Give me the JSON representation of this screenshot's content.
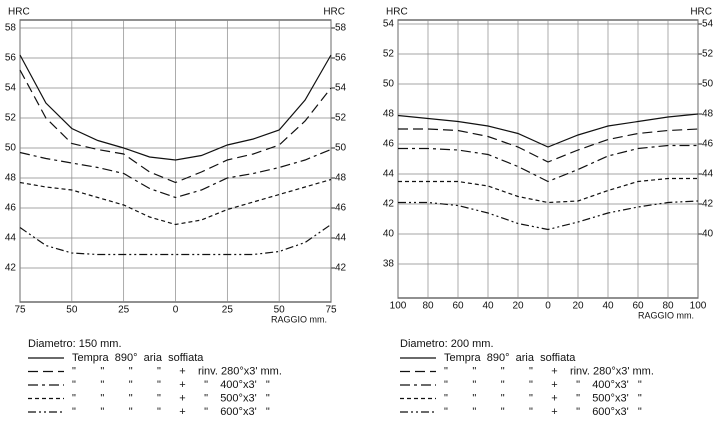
{
  "chart_data": [
    {
      "type": "line",
      "y_label": "HRC",
      "y2_label": "HRC",
      "x_label": "RAGGIO mm.",
      "legend_title": "Diametro: 150 mm.",
      "xlim": [
        -75,
        75
      ],
      "xticks": [
        {
          "value": -75,
          "label": "75"
        },
        {
          "value": -50,
          "label": "50"
        },
        {
          "value": -25,
          "label": "25"
        },
        0,
        25,
        50,
        75
      ],
      "ylim": [
        40,
        58
      ],
      "yticks": [
        42,
        44,
        46,
        48,
        50,
        52,
        54,
        56,
        58
      ],
      "y2lim": [
        40,
        58
      ],
      "y2ticks": [
        42,
        44,
        46,
        48,
        50,
        52,
        54,
        56,
        58
      ],
      "grid": true,
      "x": [
        -75,
        -62.5,
        -50,
        -37.5,
        -25,
        -12.5,
        0,
        12.5,
        25,
        37.5,
        50,
        62.5,
        75
      ],
      "series": [
        {
          "name": "Tempra  890°  aria  soffiata",
          "color": "#111",
          "dash": "none",
          "values": [
            56.2,
            53.0,
            51.3,
            50.5,
            50.0,
            49.4,
            49.2,
            49.5,
            50.2,
            50.6,
            51.2,
            53.2,
            56.2
          ]
        },
        {
          "name": "\"        \"        \"        \"      +    rinv. 280°x3' mm.",
          "color": "#111",
          "dash": "10 5",
          "values": [
            55.2,
            52.0,
            50.3,
            49.9,
            49.6,
            48.4,
            47.7,
            48.4,
            49.2,
            49.6,
            50.2,
            51.8,
            54.0
          ]
        },
        {
          "name": "\"        \"        \"        \"      +      \"    400°x3'   \"",
          "color": "#111",
          "dash": "10 4 3 4",
          "values": [
            49.7,
            49.3,
            49.0,
            48.7,
            48.3,
            47.3,
            46.7,
            47.2,
            48.0,
            48.3,
            48.7,
            49.2,
            49.9
          ]
        },
        {
          "name": "\"        \"        \"        \"      +      \"    500°x3'   \"",
          "color": "#111",
          "dash": "4 3",
          "values": [
            47.7,
            47.4,
            47.2,
            46.7,
            46.2,
            45.4,
            44.9,
            45.2,
            45.9,
            46.4,
            46.9,
            47.4,
            47.9
          ]
        },
        {
          "name": "\"        \"        \"        \"      +      \"    600°x3'   \"",
          "color": "#111",
          "dash": "8 3 2 3 2 3",
          "values": [
            44.7,
            43.5,
            43.0,
            42.9,
            42.9,
            42.9,
            42.9,
            42.9,
            42.9,
            42.9,
            43.1,
            43.7,
            44.9
          ]
        }
      ]
    },
    {
      "type": "line",
      "y_label": "HRC",
      "y2_label": "HRC",
      "x_label": "RAGGIO mm.",
      "legend_title": "Diametro: 200 mm.",
      "xlim": [
        -100,
        100
      ],
      "xticks": [
        {
          "value": -100,
          "label": "100"
        },
        {
          "value": -80,
          "label": "80"
        },
        {
          "value": -60,
          "label": "60"
        },
        {
          "value": -40,
          "label": "40"
        },
        {
          "value": -20,
          "label": "20"
        },
        0,
        20,
        40,
        60,
        80,
        100
      ],
      "ylim": [
        36,
        54
      ],
      "yticks": [
        38,
        40,
        42,
        44,
        46,
        48,
        50,
        52,
        54
      ],
      "y2lim": [
        36,
        54
      ],
      "y2ticks": [
        40,
        42,
        44,
        46,
        48,
        50,
        52,
        54
      ],
      "grid": true,
      "x": [
        -100,
        -80,
        -60,
        -40,
        -20,
        0,
        20,
        40,
        60,
        80,
        100
      ],
      "series": [
        {
          "name": "Tempra  890°  aria  soffiata",
          "color": "#111",
          "dash": "none",
          "values": [
            47.9,
            47.7,
            47.5,
            47.2,
            46.7,
            45.8,
            46.6,
            47.2,
            47.5,
            47.8,
            48.0
          ]
        },
        {
          "name": "\"        \"        \"        \"      +    rinv. 280°x3' mm.",
          "color": "#111",
          "dash": "10 5",
          "values": [
            47.0,
            47.0,
            46.9,
            46.5,
            45.8,
            44.8,
            45.6,
            46.3,
            46.7,
            46.9,
            47.0
          ]
        },
        {
          "name": "\"        \"        \"        \"      +      \"    400°x3'   \"",
          "color": "#111",
          "dash": "10 4 3 4",
          "values": [
            45.7,
            45.7,
            45.6,
            45.3,
            44.5,
            43.5,
            44.3,
            45.2,
            45.7,
            45.9,
            45.9
          ]
        },
        {
          "name": "\"        \"        \"        \"      +      \"    500°x3'   \"",
          "color": "#111",
          "dash": "4 3",
          "values": [
            43.5,
            43.5,
            43.5,
            43.2,
            42.5,
            42.1,
            42.2,
            42.9,
            43.5,
            43.7,
            43.7
          ]
        },
        {
          "name": "\"        \"        \"        \"      +      \"    600°x3'   \"",
          "color": "#111",
          "dash": "8 3 2 3 2 3",
          "values": [
            42.1,
            42.1,
            41.9,
            41.4,
            40.7,
            40.3,
            40.8,
            41.4,
            41.8,
            42.1,
            42.2
          ]
        }
      ]
    }
  ]
}
